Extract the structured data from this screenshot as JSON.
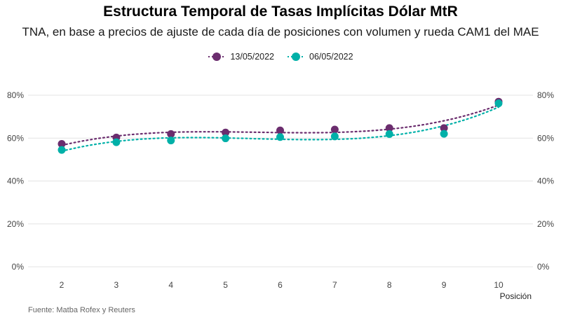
{
  "chart_data": {
    "type": "scatter",
    "title": "Estructura Temporal de Tasas Implícitas Dólar MtR",
    "subtitle": "TNA, en base a precios de ajuste de cada día de posiciones con volumen y rueda CAM1 del MAE",
    "xlabel": "Posición",
    "ylabel": "",
    "x": [
      2,
      3,
      4,
      5,
      6,
      7,
      8,
      9,
      10
    ],
    "x_tick_labels": [
      "2",
      "3",
      "4",
      "5",
      "6",
      "7",
      "8",
      "9",
      "10"
    ],
    "y_tick_labels": [
      "0%",
      "20%",
      "40%",
      "60%",
      "80%"
    ],
    "y_ticks": [
      0,
      20,
      40,
      60,
      80
    ],
    "ylim": [
      0,
      80
    ],
    "grid": true,
    "legend_position": "top-center",
    "trendline": "dotted",
    "series": [
      {
        "name": "13/05/2022",
        "color": "#6b2d6e",
        "values": [
          57.3,
          60.3,
          61.9,
          62.6,
          63.6,
          64.0,
          64.7,
          64.7,
          77.0
        ]
      },
      {
        "name": "06/05/2022",
        "color": "#00b0a8",
        "values": [
          54.5,
          58.1,
          58.9,
          59.9,
          60.5,
          60.8,
          61.9,
          62.0,
          76.2
        ]
      }
    ],
    "caption": "Fuente: Matba Rofex y Reuters"
  }
}
